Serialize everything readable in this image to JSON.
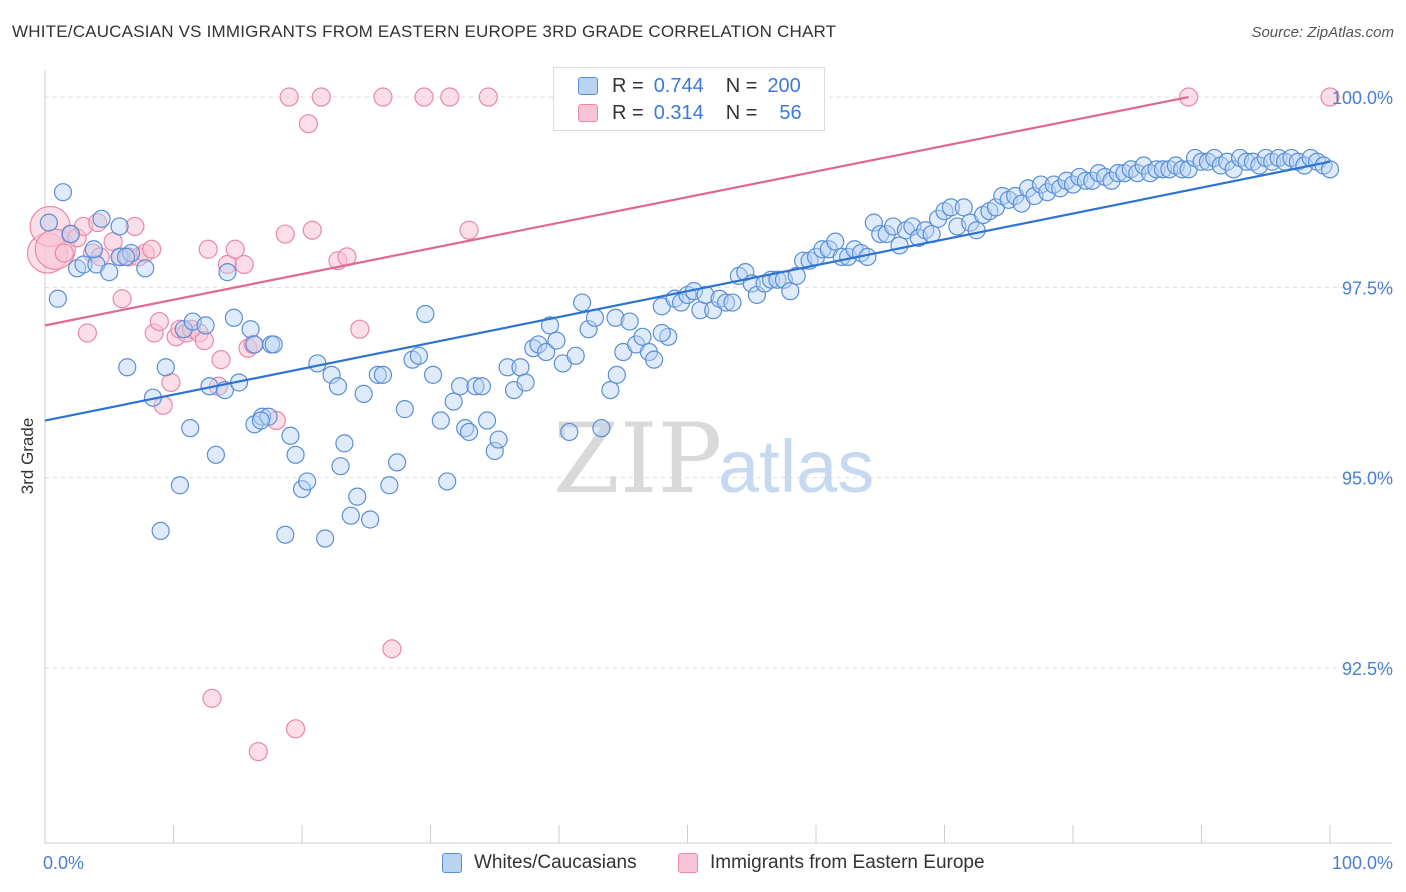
{
  "title": "WHITE/CAUCASIAN VS IMMIGRANTS FROM EASTERN EUROPE 3RD GRADE CORRELATION CHART",
  "source": "Source: ZipAtlas.com",
  "watermark": {
    "zip": "ZIP",
    "atlas": "atlas"
  },
  "legend": {
    "row1": {
      "r_label": "R =",
      "r_value": "0.744",
      "n_label": "N =",
      "n_value": "200"
    },
    "row2": {
      "r_label": "R =",
      "r_value": "0.314",
      "n_label": "N =",
      "n_value": "56"
    }
  },
  "colors": {
    "blue_fill": "#b9d3f3",
    "blue_stroke": "#5a8fd6",
    "blue_line": "#2d74d2",
    "pink_fill": "#f8c3d4",
    "pink_stroke": "#e889a8",
    "pink_line": "#e0678f",
    "axis_text": "#4a7fd0",
    "grid": "#dddddd"
  },
  "chart_data": {
    "type": "scatter",
    "ylabel": "3rd Grade",
    "xlim": [
      0,
      100
    ],
    "ylim": [
      90.2,
      100.25
    ],
    "x_tick_labels": [
      {
        "value": 0,
        "label": "0.0%"
      },
      {
        "value": 100,
        "label": "100.0%"
      }
    ],
    "y_ticks": [
      {
        "value": 100.0,
        "label": "100.0%"
      },
      {
        "value": 97.5,
        "label": "97.5%"
      },
      {
        "value": 95.0,
        "label": "95.0%"
      },
      {
        "value": 92.5,
        "label": "92.5%"
      }
    ],
    "grid": true,
    "series": [
      {
        "name": "Whites/Caucasians",
        "color": "#5a8fd6",
        "trend": {
          "x": [
            0,
            100
          ],
          "y": [
            95.75,
            99.15
          ]
        },
        "points": [
          [
            0.3,
            98.35
          ],
          [
            1.4,
            98.75
          ],
          [
            2.0,
            98.2
          ],
          [
            1.0,
            97.35
          ],
          [
            2.5,
            97.75
          ],
          [
            3.0,
            97.8
          ],
          [
            4.0,
            97.8
          ],
          [
            3.8,
            98.0
          ],
          [
            4.4,
            98.4
          ],
          [
            5.0,
            97.7
          ],
          [
            5.8,
            97.9
          ],
          [
            5.8,
            98.3
          ],
          [
            6.7,
            97.95
          ],
          [
            6.3,
            97.9
          ],
          [
            7.8,
            97.75
          ],
          [
            6.4,
            96.45
          ],
          [
            8.4,
            96.05
          ],
          [
            9.4,
            96.45
          ],
          [
            9.0,
            94.3
          ],
          [
            10.5,
            94.9
          ],
          [
            10.8,
            96.95
          ],
          [
            11.5,
            97.05
          ],
          [
            11.3,
            95.65
          ],
          [
            12.5,
            97.0
          ],
          [
            12.8,
            96.2
          ],
          [
            13.3,
            95.3
          ],
          [
            14.0,
            96.15
          ],
          [
            14.2,
            97.7
          ],
          [
            14.7,
            97.1
          ],
          [
            15.1,
            96.25
          ],
          [
            16.0,
            96.95
          ],
          [
            16.3,
            95.7
          ],
          [
            16.3,
            96.75
          ],
          [
            16.9,
            95.8
          ],
          [
            17.4,
            95.8
          ],
          [
            17.6,
            96.75
          ],
          [
            17.8,
            96.75
          ],
          [
            18.7,
            94.25
          ],
          [
            19.1,
            95.55
          ],
          [
            19.5,
            95.3
          ],
          [
            20.0,
            94.85
          ],
          [
            20.4,
            94.95
          ],
          [
            21.2,
            96.5
          ],
          [
            21.8,
            94.2
          ],
          [
            22.3,
            96.35
          ],
          [
            22.8,
            96.2
          ],
          [
            23.3,
            95.45
          ],
          [
            23.8,
            94.5
          ],
          [
            24.3,
            94.75
          ],
          [
            24.8,
            96.1
          ],
          [
            25.3,
            94.45
          ],
          [
            25.9,
            96.35
          ],
          [
            26.3,
            96.35
          ],
          [
            26.8,
            94.9
          ],
          [
            27.4,
            95.2
          ],
          [
            28.0,
            95.9
          ],
          [
            28.6,
            96.55
          ],
          [
            29.1,
            96.6
          ],
          [
            29.6,
            97.15
          ],
          [
            30.2,
            96.35
          ],
          [
            30.8,
            95.75
          ],
          [
            31.3,
            94.95
          ],
          [
            31.8,
            96.0
          ],
          [
            32.3,
            96.2
          ],
          [
            32.7,
            95.65
          ],
          [
            33.0,
            95.6
          ],
          [
            33.5,
            96.2
          ],
          [
            34.0,
            96.2
          ],
          [
            34.4,
            95.75
          ],
          [
            35.0,
            95.35
          ],
          [
            35.3,
            95.5
          ],
          [
            36.0,
            96.45
          ],
          [
            36.5,
            96.15
          ],
          [
            37.0,
            96.45
          ],
          [
            37.4,
            96.25
          ],
          [
            38.0,
            96.7
          ],
          [
            38.4,
            96.75
          ],
          [
            39.0,
            96.65
          ],
          [
            39.3,
            97.0
          ],
          [
            39.8,
            96.8
          ],
          [
            40.3,
            96.5
          ],
          [
            40.8,
            95.6
          ],
          [
            41.3,
            96.6
          ],
          [
            41.8,
            97.3
          ],
          [
            42.3,
            96.95
          ],
          [
            42.8,
            97.1
          ],
          [
            43.3,
            95.65
          ],
          [
            44.0,
            96.15
          ],
          [
            44.4,
            97.1
          ],
          [
            45.0,
            96.65
          ],
          [
            45.5,
            97.05
          ],
          [
            46.0,
            96.75
          ],
          [
            46.5,
            96.85
          ],
          [
            47.0,
            96.65
          ],
          [
            47.4,
            96.55
          ],
          [
            48.0,
            97.25
          ],
          [
            48.5,
            96.85
          ],
          [
            49.0,
            97.35
          ],
          [
            49.5,
            97.3
          ],
          [
            50.0,
            97.4
          ],
          [
            50.5,
            97.45
          ],
          [
            51.0,
            97.2
          ],
          [
            51.4,
            97.4
          ],
          [
            52.0,
            97.2
          ],
          [
            52.5,
            97.35
          ],
          [
            53.0,
            97.3
          ],
          [
            53.5,
            97.3
          ],
          [
            54.0,
            97.65
          ],
          [
            54.5,
            97.7
          ],
          [
            55.0,
            97.55
          ],
          [
            55.4,
            97.4
          ],
          [
            56.0,
            97.55
          ],
          [
            56.5,
            97.6
          ],
          [
            57.0,
            97.6
          ],
          [
            57.5,
            97.6
          ],
          [
            58.0,
            97.45
          ],
          [
            58.5,
            97.65
          ],
          [
            59.0,
            97.85
          ],
          [
            59.5,
            97.85
          ],
          [
            60.0,
            97.9
          ],
          [
            60.5,
            98.0
          ],
          [
            61.0,
            98.0
          ],
          [
            61.5,
            98.1
          ],
          [
            62.0,
            97.9
          ],
          [
            62.5,
            97.9
          ],
          [
            63.0,
            98.0
          ],
          [
            63.5,
            97.95
          ],
          [
            64.0,
            97.9
          ],
          [
            64.5,
            98.35
          ],
          [
            65.0,
            98.2
          ],
          [
            65.5,
            98.2
          ],
          [
            66.0,
            98.3
          ],
          [
            66.5,
            98.05
          ],
          [
            67.0,
            98.25
          ],
          [
            67.5,
            98.3
          ],
          [
            68.0,
            98.15
          ],
          [
            68.5,
            98.25
          ],
          [
            69.0,
            98.2
          ],
          [
            69.5,
            98.4
          ],
          [
            70.0,
            98.5
          ],
          [
            70.5,
            98.55
          ],
          [
            71.0,
            98.3
          ],
          [
            71.5,
            98.55
          ],
          [
            72.0,
            98.35
          ],
          [
            72.5,
            98.25
          ],
          [
            73.0,
            98.45
          ],
          [
            73.5,
            98.5
          ],
          [
            74.0,
            98.55
          ],
          [
            74.5,
            98.7
          ],
          [
            75.0,
            98.65
          ],
          [
            75.5,
            98.7
          ],
          [
            76.0,
            98.6
          ],
          [
            76.5,
            98.8
          ],
          [
            77.0,
            98.7
          ],
          [
            77.5,
            98.85
          ],
          [
            78.0,
            98.75
          ],
          [
            78.5,
            98.85
          ],
          [
            79.0,
            98.8
          ],
          [
            79.5,
            98.9
          ],
          [
            80.0,
            98.85
          ],
          [
            80.5,
            98.95
          ],
          [
            81.0,
            98.9
          ],
          [
            81.5,
            98.9
          ],
          [
            82.0,
            99.0
          ],
          [
            82.5,
            98.95
          ],
          [
            83.0,
            98.9
          ],
          [
            83.5,
            99.0
          ],
          [
            84.0,
            99.0
          ],
          [
            84.5,
            99.05
          ],
          [
            85.0,
            99.0
          ],
          [
            85.5,
            99.1
          ],
          [
            86.0,
            99.0
          ],
          [
            86.5,
            99.05
          ],
          [
            87.0,
            99.05
          ],
          [
            87.5,
            99.05
          ],
          [
            88.0,
            99.1
          ],
          [
            88.5,
            99.05
          ],
          [
            89.0,
            99.05
          ],
          [
            89.5,
            99.2
          ],
          [
            90.0,
            99.15
          ],
          [
            90.5,
            99.15
          ],
          [
            91.0,
            99.2
          ],
          [
            91.5,
            99.1
          ],
          [
            92.0,
            99.15
          ],
          [
            92.5,
            99.05
          ],
          [
            93.0,
            99.2
          ],
          [
            93.5,
            99.15
          ],
          [
            94.0,
            99.15
          ],
          [
            94.5,
            99.1
          ],
          [
            95.0,
            99.2
          ],
          [
            95.5,
            99.15
          ],
          [
            96.0,
            99.2
          ],
          [
            96.5,
            99.15
          ],
          [
            97.0,
            99.2
          ],
          [
            97.5,
            99.15
          ],
          [
            98.0,
            99.1
          ],
          [
            98.5,
            99.2
          ],
          [
            99.0,
            99.15
          ],
          [
            99.5,
            99.1
          ],
          [
            100.0,
            99.05
          ],
          [
            16.8,
            95.75
          ],
          [
            23.0,
            95.15
          ],
          [
            44.5,
            96.35
          ],
          [
            48.0,
            96.9
          ]
        ]
      },
      {
        "name": "Immigrants from Eastern Europe",
        "color": "#e889a8",
        "trend": {
          "x": [
            0,
            89
          ],
          "y": [
            97.0,
            100.0
          ]
        },
        "points": [
          [
            0.2,
            97.95
          ],
          [
            0.4,
            98.3
          ],
          [
            0.8,
            98.0
          ],
          [
            1.5,
            97.95
          ],
          [
            2.0,
            98.2
          ],
          [
            2.5,
            98.15
          ],
          [
            3.0,
            98.3
          ],
          [
            3.3,
            96.9
          ],
          [
            3.7,
            97.95
          ],
          [
            4.1,
            98.35
          ],
          [
            4.3,
            97.9
          ],
          [
            5.3,
            98.1
          ],
          [
            5.9,
            97.9
          ],
          [
            6.0,
            97.35
          ],
          [
            6.5,
            97.9
          ],
          [
            7.0,
            98.3
          ],
          [
            7.3,
            97.9
          ],
          [
            7.8,
            97.95
          ],
          [
            8.3,
            98.0
          ],
          [
            8.5,
            96.9
          ],
          [
            8.9,
            97.05
          ],
          [
            9.2,
            95.95
          ],
          [
            9.8,
            96.25
          ],
          [
            10.2,
            96.85
          ],
          [
            10.5,
            96.95
          ],
          [
            11.0,
            96.9
          ],
          [
            11.4,
            96.95
          ],
          [
            12.0,
            96.9
          ],
          [
            12.4,
            96.8
          ],
          [
            12.7,
            98.0
          ],
          [
            13.0,
            92.1
          ],
          [
            13.5,
            96.2
          ],
          [
            13.7,
            96.55
          ],
          [
            14.2,
            97.8
          ],
          [
            14.8,
            98.0
          ],
          [
            15.5,
            97.8
          ],
          [
            15.8,
            96.7
          ],
          [
            16.2,
            96.75
          ],
          [
            16.6,
            91.4
          ],
          [
            18.0,
            95.75
          ],
          [
            18.7,
            98.2
          ],
          [
            19.0,
            100.0
          ],
          [
            19.5,
            91.7
          ],
          [
            20.5,
            99.65
          ],
          [
            20.8,
            98.25
          ],
          [
            21.5,
            100.0
          ],
          [
            22.8,
            97.85
          ],
          [
            23.5,
            97.9
          ],
          [
            24.5,
            96.95
          ],
          [
            26.3,
            100.0
          ],
          [
            27.0,
            92.75
          ],
          [
            29.5,
            100.0
          ],
          [
            31.5,
            100.0
          ],
          [
            33.0,
            98.25
          ],
          [
            34.5,
            100.0
          ],
          [
            89.0,
            100.0
          ],
          [
            100.0,
            100.0
          ]
        ]
      }
    ]
  },
  "bottom_legend": [
    {
      "label": "Whites/Caucasians"
    },
    {
      "label": "Immigrants from Eastern Europe"
    }
  ]
}
